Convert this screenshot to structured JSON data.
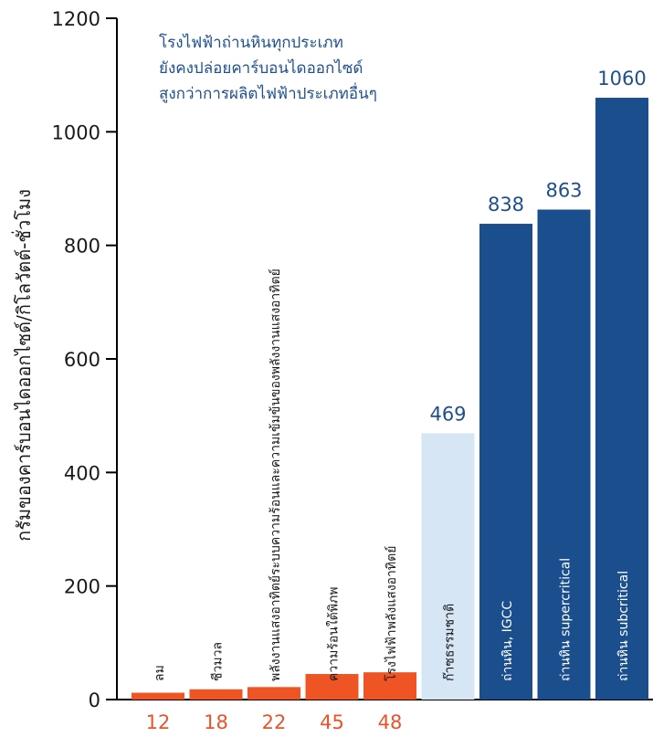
{
  "chart_data": {
    "type": "bar",
    "title": "",
    "annotation": [
      "โรงไฟฟ้าถ่านหินทุกประเภท",
      "ยังคงปล่อยคาร์บอนไดออกไซด์",
      "สูงกว่าการผลิตไฟฟ้าประเภทอื่นๆ"
    ],
    "ylabel": "กรัมของคาร์บอนไดออกไซด์/กิโลวัตต์-ชั่วโมง",
    "xlabel": "",
    "ylim": [
      0,
      1200
    ],
    "yticks": [
      "0",
      "200",
      "400",
      "600",
      "800",
      "1000",
      "1200"
    ],
    "categories": [
      "ลม",
      "ชีวมวล",
      "พลังงานแสงอาทิตย์ระบบความร้อนและความเข้มข้นของพลังงานแสงอาทิตย์",
      "ความร้อนใต้พิภพ",
      "โรงไฟฟ้าพลังแสงอาทิตย์",
      "ก๊าซธรรมชาติ",
      "ถ่านหิน, IGCC",
      "ถ่านหิน supercritical",
      "ถ่านหิน subcritical"
    ],
    "values": [
      12,
      18,
      22,
      45,
      48,
      469,
      838,
      863,
      1060
    ],
    "value_labels": [
      "12",
      "18",
      "22",
      "45",
      "48",
      "469",
      "838",
      "863",
      "1060"
    ],
    "colors": {
      "renewable": "#ee5424",
      "gas": "#d6e6f4",
      "coal": "#1a4e8c",
      "annotation": "#1e4f8f",
      "value_low": "#e8532a"
    },
    "grid": false,
    "legend": "none"
  }
}
